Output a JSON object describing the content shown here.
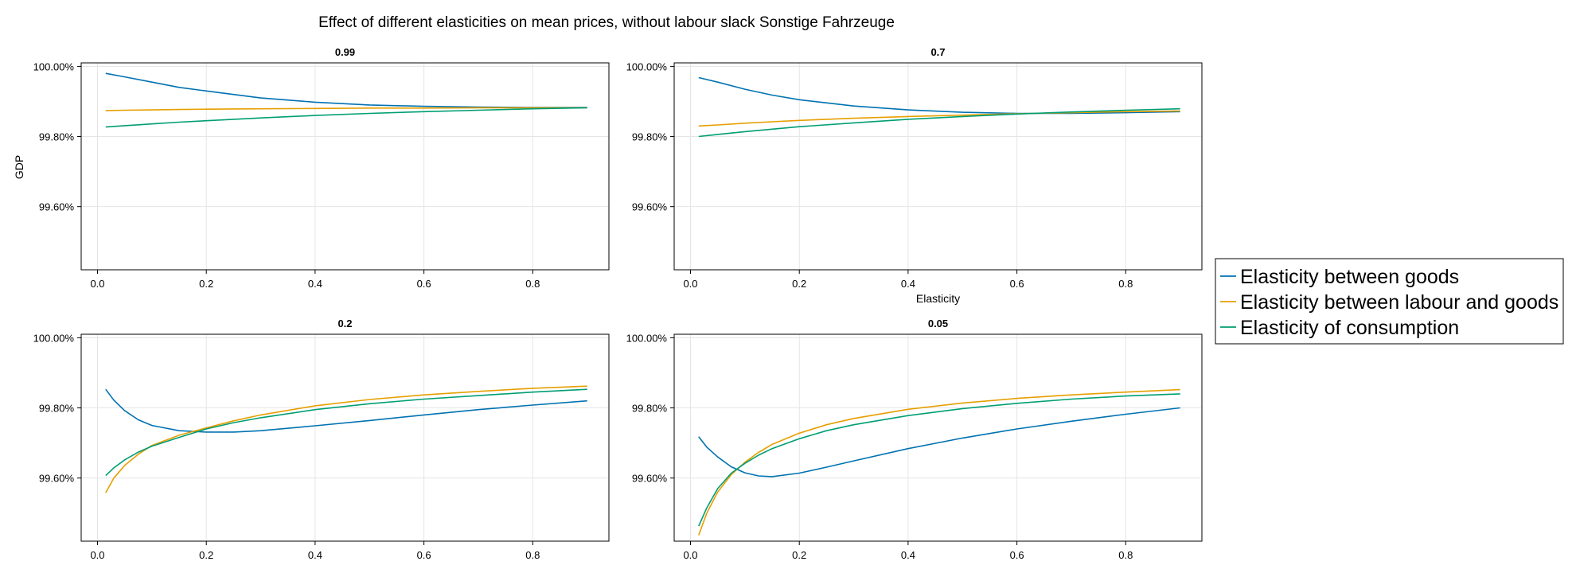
{
  "figure": {
    "title": "Effect of different elasticities on mean prices, without labour slack Sonstige Fahrzeuge",
    "ylabel": "GDP",
    "xlabel": "Elasticity"
  },
  "legend": {
    "placement": "right",
    "entries": [
      {
        "label": "Elasticity between goods",
        "color": "#0072b2"
      },
      {
        "label": "Elasticity between labour and goods",
        "color": "#e69f00"
      },
      {
        "label": "Elasticity of consumption",
        "color": "#009e73"
      }
    ]
  },
  "chart_data": [
    {
      "type": "line",
      "title": "0.99",
      "xlabel": "",
      "ylabel": "GDP",
      "xlim": [
        -0.03,
        0.94
      ],
      "ylim": [
        99.42,
        100.01
      ],
      "xticks": [
        "0.0",
        "0.2",
        "0.4",
        "0.6",
        "0.8"
      ],
      "yticks": [
        "100.00%",
        "99.80%",
        "99.60%"
      ],
      "grid": true,
      "x": [
        0.015,
        0.05,
        0.1,
        0.15,
        0.2,
        0.3,
        0.4,
        0.5,
        0.6,
        0.7,
        0.8,
        0.9
      ],
      "series": [
        {
          "name": "Elasticity between goods",
          "values": [
            99.98,
            99.97,
            99.955,
            99.94,
            99.93,
            99.91,
            99.898,
            99.89,
            99.886,
            99.884,
            99.883,
            99.883
          ]
        },
        {
          "name": "Elasticity between labour and goods",
          "values": [
            99.874,
            99.875,
            99.876,
            99.877,
            99.878,
            99.879,
            99.88,
            99.881,
            99.881,
            99.882,
            99.882,
            99.882
          ]
        },
        {
          "name": "Elasticity of consumption",
          "values": [
            99.827,
            99.831,
            99.836,
            99.841,
            99.845,
            99.853,
            99.86,
            99.866,
            99.871,
            99.875,
            99.879,
            99.882
          ]
        }
      ]
    },
    {
      "type": "line",
      "title": "0.7",
      "xlabel": "Elasticity",
      "ylabel": "",
      "xlim": [
        -0.03,
        0.94
      ],
      "ylim": [
        99.42,
        100.01
      ],
      "xticks": [
        "0.0",
        "0.2",
        "0.4",
        "0.6",
        "0.8"
      ],
      "yticks": [
        "100.00%",
        "99.80%",
        "99.60%"
      ],
      "grid": true,
      "x": [
        0.015,
        0.05,
        0.1,
        0.15,
        0.2,
        0.3,
        0.4,
        0.5,
        0.6,
        0.7,
        0.8,
        0.9
      ],
      "series": [
        {
          "name": "Elasticity between goods",
          "values": [
            99.968,
            99.955,
            99.935,
            99.918,
            99.905,
            99.887,
            99.876,
            99.869,
            99.866,
            99.866,
            99.868,
            99.871
          ]
        },
        {
          "name": "Elasticity between labour and goods",
          "values": [
            99.83,
            99.833,
            99.838,
            99.842,
            99.846,
            99.852,
            99.857,
            99.861,
            99.865,
            99.868,
            99.871,
            99.873
          ]
        },
        {
          "name": "Elasticity of consumption",
          "values": [
            99.8,
            99.806,
            99.814,
            99.821,
            99.828,
            99.839,
            99.849,
            99.857,
            99.864,
            99.87,
            99.875,
            99.879
          ]
        }
      ]
    },
    {
      "type": "line",
      "title": "0.2",
      "xlabel": "",
      "ylabel": "",
      "xlim": [
        -0.03,
        0.94
      ],
      "ylim": [
        99.42,
        100.01
      ],
      "xticks": [
        "0.0",
        "0.2",
        "0.4",
        "0.6",
        "0.8"
      ],
      "yticks": [
        "100.00%",
        "99.80%",
        "99.60%"
      ],
      "grid": true,
      "x": [
        0.015,
        0.03,
        0.05,
        0.075,
        0.1,
        0.15,
        0.2,
        0.25,
        0.3,
        0.4,
        0.5,
        0.6,
        0.7,
        0.8,
        0.9
      ],
      "series": [
        {
          "name": "Elasticity between goods",
          "values": [
            99.853,
            99.822,
            99.792,
            99.766,
            99.75,
            99.735,
            99.731,
            99.731,
            99.735,
            99.749,
            99.764,
            99.78,
            99.795,
            99.808,
            99.82
          ]
        },
        {
          "name": "Elasticity between labour and goods",
          "values": [
            99.558,
            99.6,
            99.636,
            99.668,
            99.693,
            99.722,
            99.743,
            99.763,
            99.78,
            99.806,
            99.824,
            99.837,
            99.847,
            99.856,
            99.862
          ]
        },
        {
          "name": "Elasticity of consumption",
          "values": [
            99.607,
            99.629,
            99.652,
            99.674,
            99.691,
            99.716,
            99.74,
            99.758,
            99.772,
            99.795,
            99.812,
            99.825,
            99.835,
            99.845,
            99.853
          ]
        }
      ]
    },
    {
      "type": "line",
      "title": "0.05",
      "xlabel": "",
      "ylabel": "",
      "xlim": [
        -0.03,
        0.94
      ],
      "ylim": [
        99.42,
        100.01
      ],
      "xticks": [
        "0.0",
        "0.2",
        "0.4",
        "0.6",
        "0.8"
      ],
      "yticks": [
        "100.00%",
        "99.80%",
        "99.60%"
      ],
      "grid": true,
      "x": [
        0.015,
        0.03,
        0.05,
        0.075,
        0.1,
        0.125,
        0.15,
        0.2,
        0.25,
        0.3,
        0.4,
        0.5,
        0.6,
        0.7,
        0.8,
        0.9
      ],
      "series": [
        {
          "name": "Elasticity between goods",
          "values": [
            99.718,
            99.688,
            99.66,
            99.632,
            99.615,
            99.606,
            99.604,
            99.614,
            99.631,
            99.649,
            99.684,
            99.714,
            99.74,
            99.762,
            99.782,
            99.8
          ]
        },
        {
          "name": "Elasticity between labour and goods",
          "values": [
            99.437,
            99.5,
            99.56,
            99.61,
            99.645,
            99.673,
            99.696,
            99.728,
            99.752,
            99.77,
            99.796,
            99.814,
            99.827,
            99.837,
            99.845,
            99.852
          ]
        },
        {
          "name": "Elasticity of consumption",
          "values": [
            99.463,
            99.515,
            99.57,
            99.614,
            99.642,
            99.665,
            99.684,
            99.712,
            99.735,
            99.752,
            99.778,
            99.798,
            99.813,
            99.825,
            99.834,
            99.84
          ]
        }
      ]
    }
  ]
}
